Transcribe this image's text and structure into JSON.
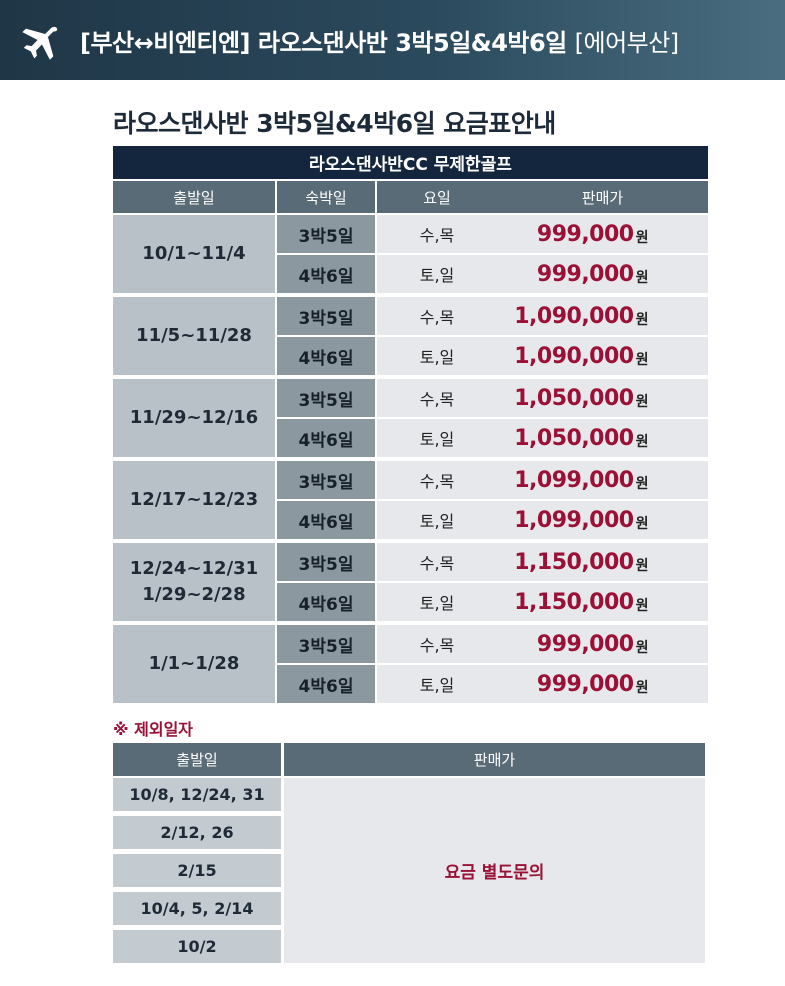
{
  "banner": {
    "icon": "airplane-icon",
    "route_title": "[부산↔비엔티엔] 라오스댄사반 3박5일&4박6일",
    "airline": "[에어부산]"
  },
  "title": "라오스댄사반 3박5일&4박6일 요금표안내",
  "price_table": {
    "header": "라오스댄사반CC 무제한골프",
    "columns": [
      "출발일",
      "숙박일",
      "요일",
      "판매가"
    ],
    "currency_unit": "원",
    "groups": [
      {
        "dates": [
          "10/1~11/4"
        ],
        "rows": [
          {
            "nights": "3박5일",
            "days": "수,목",
            "price": "999,000"
          },
          {
            "nights": "4박6일",
            "days": "토,일",
            "price": "999,000"
          }
        ]
      },
      {
        "dates": [
          "11/5~11/28"
        ],
        "rows": [
          {
            "nights": "3박5일",
            "days": "수,목",
            "price": "1,090,000"
          },
          {
            "nights": "4박6일",
            "days": "토,일",
            "price": "1,090,000"
          }
        ]
      },
      {
        "dates": [
          "11/29~12/16"
        ],
        "rows": [
          {
            "nights": "3박5일",
            "days": "수,목",
            "price": "1,050,000"
          },
          {
            "nights": "4박6일",
            "days": "토,일",
            "price": "1,050,000"
          }
        ]
      },
      {
        "dates": [
          "12/17~12/23"
        ],
        "rows": [
          {
            "nights": "3박5일",
            "days": "수,목",
            "price": "1,099,000"
          },
          {
            "nights": "4박6일",
            "days": "토,일",
            "price": "1,099,000"
          }
        ]
      },
      {
        "dates": [
          "12/24~12/31",
          "1/29~2/28"
        ],
        "rows": [
          {
            "nights": "3박5일",
            "days": "수,목",
            "price": "1,150,000"
          },
          {
            "nights": "4박6일",
            "days": "토,일",
            "price": "1,150,000"
          }
        ]
      },
      {
        "dates": [
          "1/1~1/28"
        ],
        "rows": [
          {
            "nights": "3박5일",
            "days": "수,목",
            "price": "999,000"
          },
          {
            "nights": "4박6일",
            "days": "토,일",
            "price": "999,000"
          }
        ]
      }
    ]
  },
  "exclusions": {
    "heading": "※ 제외일자",
    "columns": [
      "출발일",
      "판매가"
    ],
    "dates": [
      "10/8, 12/24, 31",
      "2/12, 26",
      "2/15",
      "10/4, 5, 2/14",
      "10/2"
    ],
    "price_note": "요금 별도문의"
  },
  "colors": {
    "banner": "#2b4a5d",
    "table_header": "#14263d",
    "column_header": "#5a6b78",
    "price": "#9b1036"
  }
}
